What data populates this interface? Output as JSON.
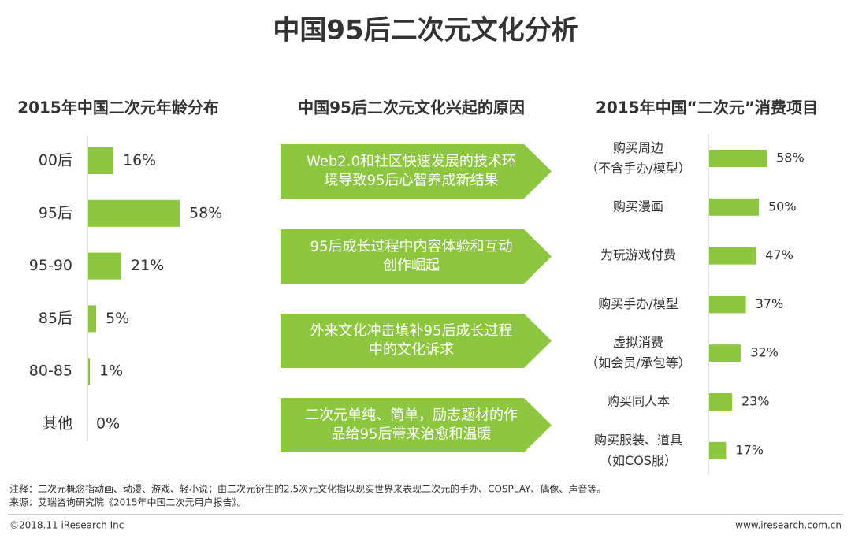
{
  "title": "中国95后二次元文化分析",
  "chart_data": [
    {
      "type": "hbar",
      "title": "2015年中国二次元年龄分布",
      "categories": [
        "00后",
        "95后",
        "95-90",
        "85后",
        "80-85",
        "其他"
      ],
      "values": [
        16,
        58,
        21,
        5,
        1,
        0
      ],
      "value_labels": [
        "16%",
        "58%",
        "21%",
        "5%",
        "1%",
        "0%"
      ],
      "color": "#8dc63f",
      "xlim": [
        0,
        100
      ]
    },
    {
      "type": "hbar",
      "title": "2015年中国“二次元”消费项目",
      "categories": [
        "购买周边\n（不含手办/模型）",
        "购买漫画",
        "为玩游戏付费",
        "购买手办/模型",
        "虚拟消费\n（如会员/承包等）",
        "购买同人本",
        "购买服装、道具\n（如COS服）"
      ],
      "values": [
        58,
        50,
        47,
        37,
        32,
        23,
        17
      ],
      "value_labels": [
        "58%",
        "50%",
        "47%",
        "37%",
        "32%",
        "23%",
        "17%"
      ],
      "color": "#8dc63f",
      "xlim": [
        0,
        100
      ]
    }
  ],
  "reasons": {
    "title": "中国95后二次元文化兴起的原因",
    "items": [
      [
        "Web2.0和社区快速发展的技术环",
        "境导致95后心智养成新结果"
      ],
      [
        "95后成长过程中内容体验和互动",
        "创作崛起"
      ],
      [
        "外来文化冲击填补95后成长过程",
        "中的文化诉求"
      ],
      [
        "二次元单纯、简单，励志题材的作",
        "品给95后带来治愈和温暖"
      ]
    ]
  },
  "notes": [
    "注释：二次元概念指动画、动漫、游戏、轻小说；由二次元衍生的2.5次元文化指以现实世界来表现二次元的手办、COSPLAY、偶像、声音等。",
    "来源：艾瑞咨询研究院《2015年中国二次元用户报告》。"
  ],
  "footer": {
    "left": "©2018.11 iResearch Inc",
    "right": "www.iresearch.com.cn"
  }
}
